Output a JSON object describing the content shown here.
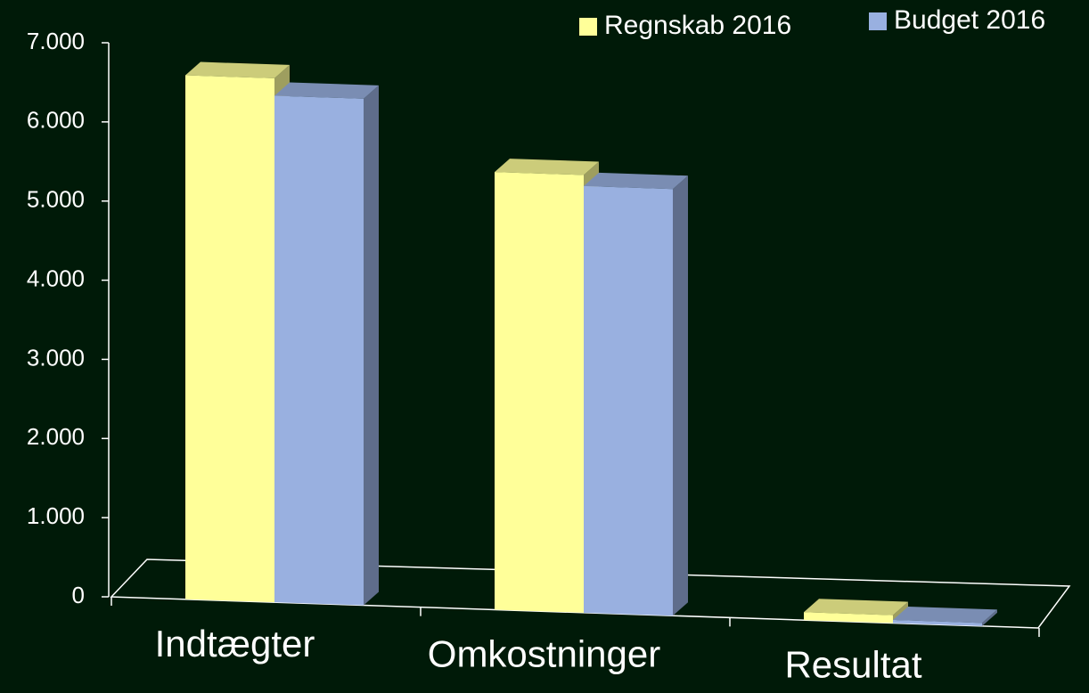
{
  "chart_data": {
    "type": "bar3d",
    "categories": [
      "Indtægter",
      "Omkostninger",
      "Resultat"
    ],
    "series": [
      {
        "name": "Regnskab 2016",
        "color": "#ffff99",
        "values": [
          6620,
          5530,
          100
        ]
      },
      {
        "name": "Budget 2016",
        "color": "#99b0e0",
        "values": [
          6400,
          5390,
          40
        ]
      }
    ],
    "ylim": [
      0,
      7000
    ],
    "yticks": [
      0,
      {
        "value": 1000,
        "label": "1.000"
      },
      {
        "value": 2000,
        "label": "2.000"
      },
      {
        "value": 3000,
        "label": "3.000"
      },
      {
        "value": 4000,
        "label": "4.000"
      },
      {
        "value": 5000,
        "label": "5.000"
      },
      {
        "value": 6000,
        "label": "6.000"
      },
      {
        "value": 7000,
        "label": "7.000"
      }
    ],
    "legend": "top-right"
  }
}
